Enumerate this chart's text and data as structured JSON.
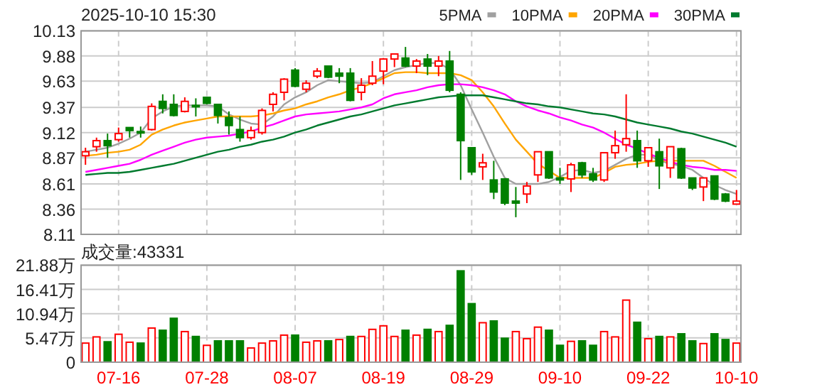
{
  "chart_data": [
    {
      "type": "candlestick",
      "title": "2025-10-10 15:30",
      "tick_labels": "y",
      "grid": true,
      "legend": "top right",
      "categories": [
        null,
        null,
        null,
        null,
        null,
        null,
        null,
        null,
        null,
        null,
        null,
        null,
        null,
        null,
        null,
        null,
        null,
        null,
        null,
        null,
        null,
        null,
        null,
        null,
        null,
        null,
        null,
        null,
        null,
        null,
        null,
        null,
        null,
        null,
        null,
        null,
        null,
        null,
        null,
        null,
        null,
        null,
        null,
        null,
        null,
        null,
        null,
        null,
        null,
        null,
        null,
        null,
        null,
        null,
        null,
        null,
        null,
        null,
        null,
        null
      ],
      "ylim": [
        8.11,
        10.13
      ],
      "yticks": [
        8.11,
        8.36,
        8.61,
        8.87,
        9.12,
        9.37,
        9.63,
        9.88,
        10.13
      ],
      "ohlc": [
        [
          8.89,
          8.97,
          8.8,
          8.93
        ],
        [
          8.98,
          9.07,
          8.93,
          9.04
        ],
        [
          9.04,
          9.11,
          8.87,
          8.99
        ],
        [
          9.05,
          9.17,
          9.03,
          9.11
        ],
        [
          9.17,
          9.17,
          9.07,
          9.14
        ],
        [
          9.13,
          9.18,
          9.07,
          9.12
        ],
        [
          9.15,
          9.41,
          9.14,
          9.38
        ],
        [
          9.43,
          9.5,
          9.31,
          9.36
        ],
        [
          9.4,
          9.5,
          9.28,
          9.29
        ],
        [
          9.33,
          9.47,
          9.32,
          9.43
        ],
        [
          9.39,
          9.46,
          9.28,
          9.38
        ],
        [
          9.47,
          9.47,
          9.4,
          9.41
        ],
        [
          9.4,
          9.4,
          9.21,
          9.29
        ],
        [
          9.27,
          9.33,
          9.1,
          9.19
        ],
        [
          9.15,
          9.28,
          9.03,
          9.07
        ],
        [
          9.07,
          9.18,
          9.05,
          9.14
        ],
        [
          9.12,
          9.36,
          9.1,
          9.34
        ],
        [
          9.4,
          9.52,
          9.33,
          9.5
        ],
        [
          9.52,
          9.66,
          9.44,
          9.65
        ],
        [
          9.74,
          9.76,
          9.57,
          9.58
        ],
        [
          9.55,
          9.64,
          9.52,
          9.61
        ],
        [
          9.68,
          9.76,
          9.66,
          9.73
        ],
        [
          9.78,
          9.78,
          9.66,
          9.67
        ],
        [
          9.71,
          9.76,
          9.61,
          9.68
        ],
        [
          9.71,
          9.76,
          9.43,
          9.44
        ],
        [
          9.52,
          9.66,
          9.44,
          9.59
        ],
        [
          9.61,
          9.83,
          9.59,
          9.68
        ],
        [
          9.73,
          9.86,
          9.6,
          9.85
        ],
        [
          9.85,
          9.9,
          9.77,
          9.9
        ],
        [
          9.86,
          9.97,
          9.77,
          9.78
        ],
        [
          9.78,
          9.85,
          9.71,
          9.83
        ],
        [
          9.85,
          9.9,
          9.69,
          9.78
        ],
        [
          9.78,
          9.88,
          9.68,
          9.83
        ],
        [
          9.83,
          9.93,
          9.52,
          9.54
        ],
        [
          9.5,
          9.52,
          8.65,
          9.04
        ],
        [
          8.97,
          8.97,
          8.7,
          8.73
        ],
        [
          8.78,
          8.91,
          8.65,
          8.82
        ],
        [
          8.65,
          8.84,
          8.46,
          8.53
        ],
        [
          8.66,
          8.66,
          8.4,
          8.42
        ],
        [
          8.44,
          8.58,
          8.28,
          8.42
        ],
        [
          8.51,
          8.63,
          8.42,
          8.59
        ],
        [
          8.7,
          8.93,
          8.63,
          8.93
        ],
        [
          8.93,
          8.93,
          8.66,
          8.67
        ],
        [
          8.67,
          8.77,
          8.61,
          8.65
        ],
        [
          8.66,
          8.82,
          8.53,
          8.8
        ],
        [
          8.82,
          8.83,
          8.67,
          8.7
        ],
        [
          8.71,
          8.77,
          8.63,
          8.65
        ],
        [
          8.65,
          8.92,
          8.63,
          8.92
        ],
        [
          8.92,
          9.14,
          8.86,
          8.99
        ],
        [
          9.0,
          9.5,
          8.93,
          9.06
        ],
        [
          9.04,
          9.14,
          8.77,
          8.84
        ],
        [
          8.84,
          8.97,
          8.78,
          8.97
        ],
        [
          8.93,
          9.06,
          8.56,
          8.79
        ],
        [
          8.77,
          8.98,
          8.67,
          8.98
        ],
        [
          8.96,
          8.97,
          8.66,
          8.67
        ],
        [
          8.67,
          8.67,
          8.55,
          8.57
        ],
        [
          8.58,
          8.67,
          8.44,
          8.67
        ],
        [
          8.69,
          8.69,
          8.45,
          8.46
        ],
        [
          8.51,
          8.52,
          8.43,
          8.44
        ],
        [
          8.41,
          8.55,
          8.41,
          8.44
        ]
      ],
      "colors": [
        "#ff0000",
        "#ff0000",
        "#008000",
        "#ff0000",
        "#008000",
        "#008000",
        "#ff0000",
        "#008000",
        "#008000",
        "#ff0000",
        "#008000",
        "#008000",
        "#008000",
        "#008000",
        "#008000",
        "#ff0000",
        "#ff0000",
        "#ff0000",
        "#ff0000",
        "#008000",
        "#ff0000",
        "#ff0000",
        "#008000",
        "#008000",
        "#008000",
        "#ff0000",
        "#ff0000",
        "#ff0000",
        "#ff0000",
        "#008000",
        "#ff0000",
        "#008000",
        "#ff0000",
        "#008000",
        "#008000",
        "#008000",
        "#ff0000",
        "#008000",
        "#008000",
        "#008000",
        "#ff0000",
        "#ff0000",
        "#008000",
        "#008000",
        "#ff0000",
        "#008000",
        "#008000",
        "#ff0000",
        "#ff0000",
        "#ff0000",
        "#008000",
        "#ff0000",
        "#008000",
        "#ff0000",
        "#008000",
        "#008000",
        "#ff0000",
        "#008000",
        "#008000",
        "#ff0000"
      ],
      "series": [
        {
          "type": "line",
          "name": "5PMA",
          "color": "#a0a0a0",
          "values": [
            8.93,
            8.95,
            8.97,
            9.01,
            9.06,
            9.12,
            9.26,
            9.33,
            9.38,
            9.39,
            9.39,
            9.39,
            9.38,
            9.3,
            9.25,
            9.21,
            9.2,
            9.28,
            9.4,
            9.47,
            9.52,
            9.59,
            9.64,
            9.63,
            9.62,
            9.61,
            9.62,
            9.68,
            9.74,
            9.77,
            9.79,
            9.81,
            9.81,
            9.75,
            9.59,
            9.35,
            9.12,
            8.88,
            8.67,
            8.61,
            8.61,
            8.61,
            8.63,
            8.68,
            8.74,
            8.75,
            8.72,
            8.74,
            8.8,
            8.86,
            8.9,
            8.9,
            8.84,
            8.81,
            8.79,
            8.75,
            8.67,
            8.6,
            8.55,
            8.51
          ]
        },
        {
          "type": "line",
          "name": "10PMA",
          "color": "#ffa500",
          "values": [
            8.89,
            8.9,
            8.92,
            8.93,
            8.95,
            9.0,
            9.1,
            9.15,
            9.19,
            9.22,
            9.24,
            9.26,
            9.28,
            9.28,
            9.28,
            9.28,
            9.29,
            9.31,
            9.34,
            9.36,
            9.4,
            9.43,
            9.47,
            9.5,
            9.54,
            9.57,
            9.61,
            9.66,
            9.71,
            9.72,
            9.72,
            9.71,
            9.71,
            9.71,
            9.69,
            9.64,
            9.52,
            9.38,
            9.21,
            9.05,
            8.93,
            8.81,
            8.74,
            8.67,
            8.67,
            8.67,
            8.67,
            8.72,
            8.78,
            8.8,
            8.81,
            8.83,
            8.84,
            8.84,
            8.84,
            8.84,
            8.84,
            8.79,
            8.73,
            8.67
          ]
        },
        {
          "type": "line",
          "name": "20PMA",
          "color": "#ff00ff",
          "values": [
            8.73,
            8.75,
            8.77,
            8.79,
            8.81,
            8.85,
            8.9,
            8.94,
            8.98,
            9.02,
            9.05,
            9.07,
            9.08,
            9.09,
            9.11,
            9.13,
            9.17,
            9.2,
            9.24,
            9.28,
            9.3,
            9.31,
            9.32,
            9.33,
            9.35,
            9.37,
            9.4,
            9.46,
            9.5,
            9.52,
            9.54,
            9.57,
            9.59,
            9.6,
            9.6,
            9.59,
            9.57,
            9.54,
            9.5,
            9.43,
            9.38,
            9.34,
            9.31,
            9.27,
            9.24,
            9.2,
            9.17,
            9.12,
            9.06,
            9.0,
            8.96,
            8.91,
            8.87,
            8.83,
            8.8,
            8.78,
            8.77,
            8.75,
            8.75,
            8.74
          ]
        },
        {
          "type": "line",
          "name": "30PMA",
          "color": "#007a2e",
          "values": [
            8.7,
            8.71,
            8.72,
            8.72,
            8.73,
            8.75,
            8.77,
            8.79,
            8.81,
            8.84,
            8.87,
            8.9,
            8.93,
            8.95,
            8.98,
            9.0,
            9.03,
            9.05,
            9.08,
            9.12,
            9.15,
            9.19,
            9.22,
            9.25,
            9.28,
            9.3,
            9.33,
            9.36,
            9.39,
            9.41,
            9.43,
            9.45,
            9.47,
            9.48,
            9.49,
            9.49,
            9.49,
            9.47,
            9.45,
            9.43,
            9.41,
            9.4,
            9.38,
            9.37,
            9.35,
            9.33,
            9.31,
            9.3,
            9.28,
            9.25,
            9.22,
            9.2,
            9.18,
            9.16,
            9.13,
            9.11,
            9.08,
            9.05,
            9.02,
            8.98
          ]
        }
      ]
    },
    {
      "type": "bar",
      "grid": true,
      "annotations": [
        "成交量:43331"
      ],
      "categories": [
        null,
        null,
        null,
        "07-16",
        null,
        null,
        null,
        null,
        null,
        null,
        null,
        "07-28",
        null,
        null,
        null,
        null,
        null,
        null,
        null,
        "08-07",
        null,
        null,
        null,
        null,
        null,
        null,
        null,
        "08-19",
        null,
        null,
        null,
        null,
        null,
        null,
        null,
        "08-29",
        null,
        null,
        null,
        null,
        null,
        null,
        null,
        "09-10",
        null,
        null,
        null,
        null,
        null,
        null,
        null,
        "09-22",
        null,
        null,
        null,
        null,
        null,
        null,
        null,
        "10-10"
      ],
      "ylim": [
        0,
        21.88
      ],
      "yticks": [
        0,
        {
          "value": 5.47,
          "label": "5.47万"
        },
        {
          "value": 10.94,
          "label": "10.94万"
        },
        {
          "value": 16.41,
          "label": "16.41万"
        },
        {
          "value": 21.88,
          "label": "21.88万"
        }
      ],
      "values": [
        4.3,
        5.7,
        4.6,
        6.3,
        4.5,
        4.3,
        7.7,
        7.2,
        9.9,
        6.9,
        5.8,
        3.8,
        4.8,
        4.8,
        4.8,
        3.2,
        4.3,
        4.8,
        6.1,
        6.1,
        4.5,
        4.8,
        4.8,
        5.1,
        5.8,
        5.8,
        7.4,
        8.2,
        5.8,
        7.2,
        6.1,
        7.4,
        6.9,
        8.3,
        20.6,
        13.2,
        8.9,
        9.3,
        5.4,
        6.9,
        5.3,
        7.9,
        7.2,
        3.8,
        4.7,
        4.8,
        3.8,
        6.9,
        5.7,
        14.0,
        9.0,
        5.3,
        5.8,
        5.7,
        6.4,
        4.8,
        4.2,
        6.4,
        5.1,
        4.3
      ],
      "colors": [
        "#ff0000",
        "#ff0000",
        "#008000",
        "#ff0000",
        "#ff0000",
        "#008000",
        "#ff0000",
        "#008000",
        "#008000",
        "#ff0000",
        "#008000",
        "#ff0000",
        "#008000",
        "#008000",
        "#008000",
        "#ff0000",
        "#ff0000",
        "#ff0000",
        "#ff0000",
        "#008000",
        "#ff0000",
        "#ff0000",
        "#008000",
        "#ff0000",
        "#008000",
        "#ff0000",
        "#ff0000",
        "#ff0000",
        "#ff0000",
        "#008000",
        "#ff0000",
        "#008000",
        "#ff0000",
        "#008000",
        "#008000",
        "#008000",
        "#ff0000",
        "#008000",
        "#008000",
        "#ff0000",
        "#ff0000",
        "#ff0000",
        "#008000",
        "#008000",
        "#ff0000",
        "#008000",
        "#008000",
        "#ff0000",
        "#ff0000",
        "#ff0000",
        "#008000",
        "#ff0000",
        "#008000",
        "#ff0000",
        "#008000",
        "#008000",
        "#ff0000",
        "#008000",
        "#008000",
        "#ff0000"
      ]
    }
  ]
}
